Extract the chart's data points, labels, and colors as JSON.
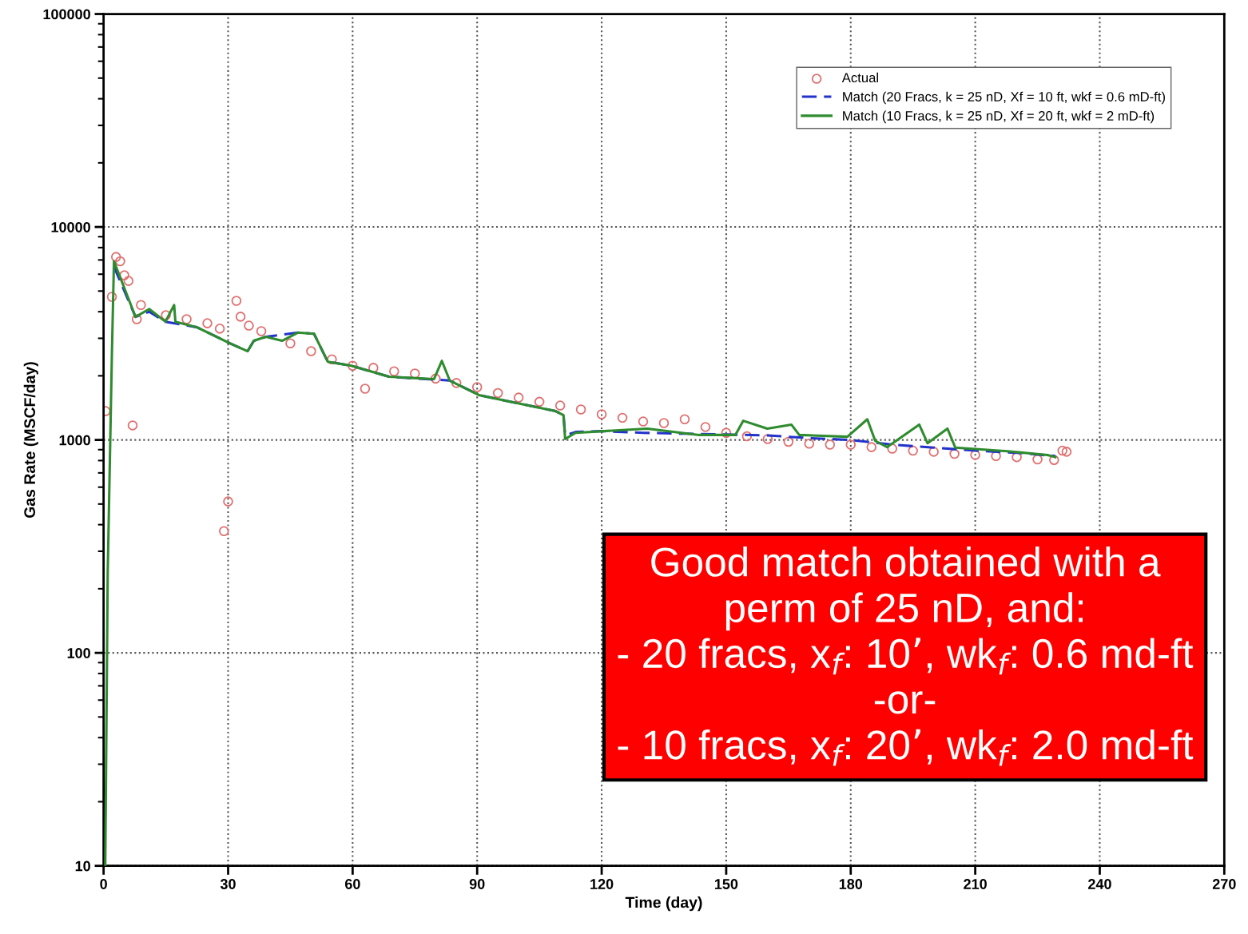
{
  "chart_data": {
    "type": "line",
    "xlabel": "Time (day)",
    "ylabel": "Gas Rate (MSCF/day)",
    "log": "y",
    "xlim": [
      0,
      270
    ],
    "ylim": [
      10,
      100000
    ],
    "xticks": [
      0,
      30,
      60,
      90,
      120,
      150,
      180,
      210,
      240,
      270
    ],
    "yticks": [
      10,
      100,
      1000,
      10000,
      100000
    ],
    "grid": true,
    "legend": "top right",
    "series": [
      {
        "name": "Actual",
        "type": "scatter",
        "marker": "circle",
        "color": "#e07070",
        "x": [
          0.5,
          2,
          3,
          4,
          5,
          6,
          7,
          8,
          9,
          15,
          20,
          25,
          28,
          29,
          30,
          32,
          33,
          35,
          38,
          45,
          50,
          55,
          60,
          63,
          65,
          70,
          75,
          80,
          85,
          90,
          95,
          100,
          105,
          110,
          115,
          120,
          125,
          130,
          135,
          140,
          145,
          150,
          155,
          160,
          165,
          170,
          175,
          180,
          185,
          190,
          195,
          200,
          205,
          210,
          215,
          220,
          225,
          229,
          231,
          232
        ],
        "values": [
          1365,
          4700,
          7230,
          6900,
          5930,
          5580,
          1170,
          3690,
          4300,
          3850,
          3690,
          3530,
          3330,
          373,
          514,
          4500,
          3790,
          3440,
          3240,
          2840,
          2610,
          2390,
          2230,
          1740,
          2180,
          2100,
          2050,
          1940,
          1850,
          1770,
          1660,
          1580,
          1510,
          1450,
          1390,
          1320,
          1270,
          1220,
          1200,
          1250,
          1150,
          1080,
          1040,
          1010,
          980,
          960,
          950,
          950,
          925,
          910,
          890,
          880,
          860,
          850,
          840,
          830,
          810,
          805,
          890,
          880
        ]
      },
      {
        "name": "Match (20 Fracs, k = 25 nD, Xf = 10 ft, wkf = 0.6 mD-ft)",
        "type": "line",
        "line_style": "dashed",
        "color": "#2233cc",
        "x": [
          2.5,
          7.7,
          11,
          14.9,
          22.5,
          30.3,
          34.7,
          36.2,
          39.1,
          46.8,
          50.7,
          54,
          59.7,
          68.8,
          83.4,
          90.6,
          108.9,
          110.8,
          111.2,
          113.7,
          120,
          130,
          140,
          150,
          160,
          170,
          180,
          190,
          200,
          210,
          220,
          229.3
        ],
        "values": [
          6500,
          3780,
          4000,
          3590,
          3380,
          2850,
          2610,
          2920,
          3050,
          3190,
          3150,
          2330,
          2230,
          1980,
          1900,
          1620,
          1365,
          1306,
          1050,
          1090,
          1100,
          1080,
          1070,
          1060,
          1050,
          1020,
          1000,
          950,
          920,
          890,
          870,
          840
        ]
      },
      {
        "name": "Match (10 Fracs, k = 25 nD, Xf = 20 ft, wkf = 2 mD-ft)",
        "type": "line",
        "line_style": "solid",
        "color": "#2e8b2e",
        "x": [
          0.4,
          1,
          2,
          2.5,
          7.7,
          11,
          14.9,
          17,
          17.3,
          22.5,
          30.3,
          34.7,
          36.2,
          39.1,
          43,
          46.8,
          50.7,
          54,
          59.7,
          68.8,
          79.6,
          81.5,
          83.4,
          90.6,
          108.9,
          110.8,
          111.2,
          113.7,
          131,
          143.5,
          152.2,
          154.1,
          159.9,
          165.7,
          167.6,
          179.2,
          184,
          185.9,
          188.8,
          196.5,
          198.5,
          203.3,
          205.2,
          217.7,
          227.4,
          229.3
        ],
        "values": [
          10,
          240,
          2500,
          6900,
          3780,
          4120,
          3590,
          4300,
          3590,
          3380,
          2850,
          2610,
          2920,
          3050,
          2920,
          3190,
          3150,
          2330,
          2230,
          1980,
          1930,
          2350,
          1900,
          1620,
          1365,
          1306,
          1010,
          1080,
          1130,
          1055,
          1055,
          1230,
          1130,
          1180,
          1055,
          1035,
          1250,
          990,
          925,
          1180,
          965,
          1130,
          920,
          885,
          850,
          830
        ]
      }
    ],
    "annotations": [
      "Good match obtained with a\nperm of 25 nD, and:\n- 20 fracs, x$_{f}$: 10’, wk$_{f}$: 0.6 md-ft\n-or-\n- 10 fracs, x$_{f}$: 20’, wk$_{f}$: 2.0 md-ft"
    ]
  }
}
